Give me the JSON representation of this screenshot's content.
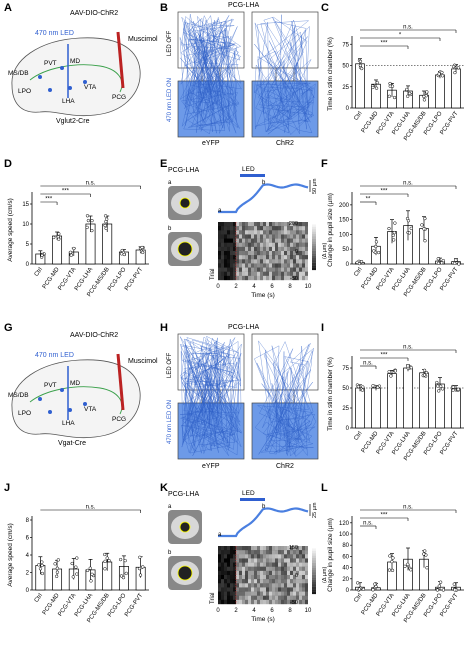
{
  "panels": {
    "A": {
      "letter": "A",
      "virus": "AAV-DIO-ChR2",
      "led": "470 nm LED",
      "drug": "Muscimol",
      "regions": [
        "MS/DB",
        "PVT",
        "MD",
        "LPO",
        "VTA",
        "LHA",
        "PCG"
      ],
      "mouse": "Vglut2-Cre"
    },
    "B": {
      "letter": "B",
      "title": "PCG-LHA",
      "off": "LED OFF",
      "on": "470 nm LED ON",
      "groups": [
        "eYFP",
        "ChR2"
      ]
    },
    "C": {
      "letter": "C",
      "ylabel": "Time in stim chamber (%)",
      "sig": [
        "n.s.",
        "*",
        "***"
      ],
      "yticks": [
        "0",
        "25",
        "50",
        "75"
      ]
    },
    "D": {
      "letter": "D",
      "ylabel": "Average speed (cm/s)",
      "sig": [
        "n.s.",
        "***",
        "***"
      ],
      "yticks": [
        "0",
        "5",
        "10",
        "15"
      ]
    },
    "E": {
      "letter": "E",
      "title": "PCG-LHA",
      "led": "LED",
      "scale": "50 µm",
      "a": "a",
      "b": "b",
      "xlabel": "Time (s)",
      "trial": "Trial",
      "cbar": [
        "200",
        "0",
        "-50"
      ],
      "cbar_unit": "(Δ µm)",
      "xticks": [
        "0",
        "2",
        "4",
        "6",
        "8",
        "10"
      ]
    },
    "F": {
      "letter": "F",
      "ylabel": "Change in pupil size (µm)",
      "sig": [
        "n.s.",
        "***",
        "**"
      ],
      "yticks": [
        "0",
        "50",
        "100",
        "150",
        "200"
      ]
    },
    "G": {
      "letter": "G",
      "virus": "AAV-DIO-ChR2",
      "led": "470 nm LED",
      "drug": "Muscimol",
      "regions": [
        "MS/DB",
        "PVT",
        "MD",
        "LPO",
        "VTA",
        "LHA",
        "PCG"
      ],
      "mouse": "Vgat-Cre"
    },
    "H": {
      "letter": "H",
      "title": "PCG-LHA",
      "off": "LED OFF",
      "on": "470 nm LED ON",
      "groups": [
        "eYFP",
        "ChR2"
      ]
    },
    "I": {
      "letter": "I",
      "ylabel": "Time in stim chamber (%)",
      "sig": [
        "n.s.",
        "***",
        "n.s."
      ],
      "yticks": [
        "0",
        "25",
        "50",
        "75"
      ]
    },
    "J": {
      "letter": "J",
      "ylabel": "Average speed (cm/s)",
      "sig": [
        "n.s."
      ],
      "yticks": [
        "0",
        "2",
        "4",
        "6",
        "8"
      ]
    },
    "K": {
      "letter": "K",
      "title": "PCG-LHA",
      "led": "LED",
      "scale": "25 µm",
      "a": "a",
      "b": "b",
      "xlabel": "Time (s)",
      "trial": "Trial",
      "cbar": [
        "150",
        "0",
        "-50"
      ],
      "cbar_unit": "(Δ µm)",
      "xticks": [
        "0",
        "2",
        "4",
        "6",
        "8",
        "10"
      ]
    },
    "L": {
      "letter": "L",
      "ylabel": "Change in pupil size (µm)",
      "sig": [
        "n.s.",
        "***",
        "n.s."
      ],
      "yticks": [
        "0",
        "20",
        "40",
        "60",
        "80",
        "100",
        "120"
      ]
    }
  },
  "categories": [
    "Ctrl",
    "PCG-MD",
    "PCG-VTA",
    "PCG-LHA",
    "PCG-MS/DB",
    "PCG-LPO",
    "PCG-PVT"
  ],
  "colors": {
    "accent": "#2f5fd0",
    "arena_fill": "#6d9ae8",
    "trace": "#4a7fe0"
  },
  "chart_data": [
    {
      "type": "bar",
      "panel": "C",
      "categories": [
        "Ctrl",
        "PCG-MD",
        "PCG-VTA",
        "PCG-LHA",
        "PCG-MS/DB",
        "PCG-LPO",
        "PCG-PVT"
      ],
      "values": [
        52,
        28,
        21,
        20,
        15,
        39,
        46
      ],
      "errors": [
        6,
        5,
        8,
        6,
        5,
        4,
        5
      ],
      "ylim": [
        0,
        80
      ],
      "ylabel": "Time in stim chamber (%)"
    },
    {
      "type": "bar",
      "panel": "D",
      "categories": [
        "Ctrl",
        "PCG-MD",
        "PCG-VTA",
        "PCG-LHA",
        "PCG-MS/DB",
        "PCG-LPO",
        "PCG-PVT"
      ],
      "values": [
        2.5,
        7,
        3,
        10,
        10,
        3,
        3.5
      ],
      "errors": [
        0.8,
        1,
        1,
        2,
        2,
        0.6,
        0.8
      ],
      "ylim": [
        0,
        17
      ],
      "ylabel": "Average speed (cm/s)"
    },
    {
      "type": "bar",
      "panel": "F",
      "categories": [
        "Ctrl",
        "PCG-MD",
        "PCG-VTA",
        "PCG-LHA",
        "PCG-MS/DB",
        "PCG-LPO",
        "PCG-PVT"
      ],
      "values": [
        5,
        60,
        110,
        130,
        120,
        10,
        8
      ],
      "errors": [
        5,
        30,
        40,
        50,
        40,
        10,
        10
      ],
      "ylim": [
        0,
        230
      ],
      "ylabel": "Change in pupil size (µm)"
    },
    {
      "type": "bar",
      "panel": "I",
      "categories": [
        "Ctrl",
        "PCG-MD",
        "PCG-VTA",
        "PCG-LHA",
        "PCG-MS/DB",
        "PCG-LPO",
        "PCG-PVT"
      ],
      "values": [
        50,
        50,
        68,
        75,
        69,
        55,
        49
      ],
      "errors": [
        4,
        3,
        4,
        4,
        4,
        8,
        4
      ],
      "ylim": [
        0,
        85
      ],
      "ylabel": "Time in stim chamber (%)"
    },
    {
      "type": "bar",
      "panel": "J",
      "categories": [
        "Ctrl",
        "PCG-MD",
        "PCG-VTA",
        "PCG-LHA",
        "PCG-MS/DB",
        "PCG-LPO",
        "PCG-PVT"
      ],
      "values": [
        2.8,
        2.4,
        2.4,
        2.3,
        3.2,
        2.7,
        2.6
      ],
      "errors": [
        1.0,
        1.0,
        1.2,
        1.2,
        1.0,
        1.2,
        1.2
      ],
      "ylim": [
        0,
        8
      ],
      "ylabel": "Average speed (cm/s)"
    },
    {
      "type": "bar",
      "panel": "L",
      "categories": [
        "Ctrl",
        "PCG-MD",
        "PCG-VTA",
        "PCG-LHA",
        "PCG-MS/DB",
        "PCG-LPO",
        "PCG-PVT"
      ],
      "values": [
        5,
        4,
        50,
        55,
        55,
        5,
        5
      ],
      "errors": [
        8,
        8,
        15,
        20,
        15,
        10,
        8
      ],
      "ylim": [
        0,
        125
      ],
      "ylabel": "Change in pupil size (µm)"
    }
  ]
}
